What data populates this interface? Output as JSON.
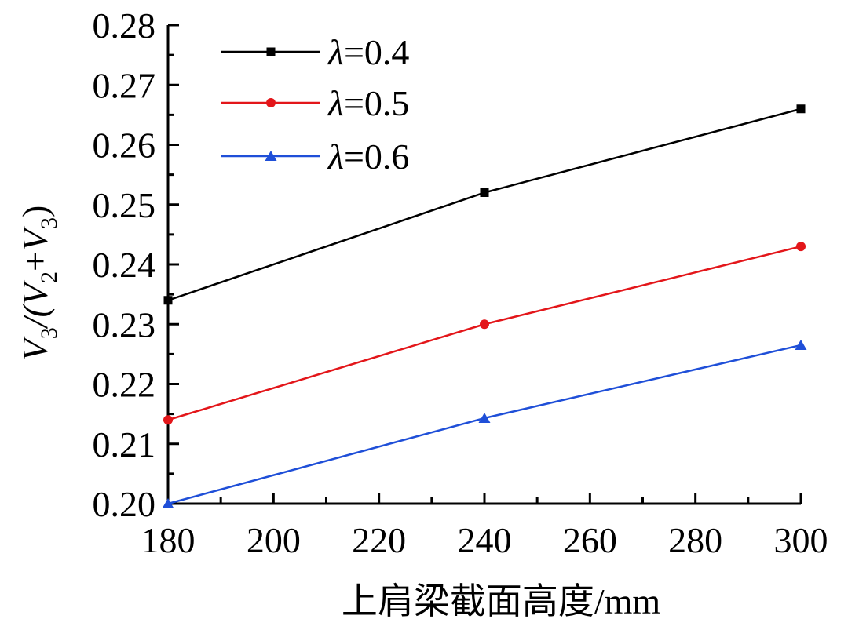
{
  "chart_data": {
    "type": "line",
    "title": "",
    "xlabel": "上肩梁截面高度/mm",
    "ylabel": "V3/(V2+V3)",
    "ylabel_parts": {
      "v": "V",
      "sub3": "3",
      "slash_open": "/(",
      "sub2": "2",
      "plus": "+",
      "close": ")"
    },
    "x": [
      180,
      240,
      300
    ],
    "xlim": [
      180,
      300
    ],
    "ylim": [
      0.2,
      0.28
    ],
    "x_ticks": [
      "180",
      "200",
      "220",
      "240",
      "260",
      "280",
      "300"
    ],
    "x_tick_values": [
      180,
      200,
      220,
      240,
      260,
      280,
      300
    ],
    "y_ticks": [
      "0.20",
      "0.21",
      "0.22",
      "0.23",
      "0.24",
      "0.25",
      "0.26",
      "0.27",
      "0.28"
    ],
    "y_tick_values": [
      0.2,
      0.21,
      0.22,
      0.23,
      0.24,
      0.25,
      0.26,
      0.27,
      0.28
    ],
    "series": [
      {
        "name": "λ=0.4",
        "lambda": "λ",
        "value_label": "=0.4",
        "color": "#000000",
        "marker": "square",
        "values": [
          0.234,
          0.252,
          0.266
        ]
      },
      {
        "name": "λ=0.5",
        "lambda": "λ",
        "value_label": "=0.5",
        "color": "#e3161a",
        "marker": "circle",
        "values": [
          0.214,
          0.23,
          0.243
        ]
      },
      {
        "name": "λ=0.6",
        "lambda": "λ",
        "value_label": "=0.6",
        "color": "#1f4fd8",
        "marker": "triangle",
        "values": [
          0.2,
          0.2143,
          0.2265
        ]
      }
    ],
    "legend_position": "top-left",
    "grid": false
  }
}
